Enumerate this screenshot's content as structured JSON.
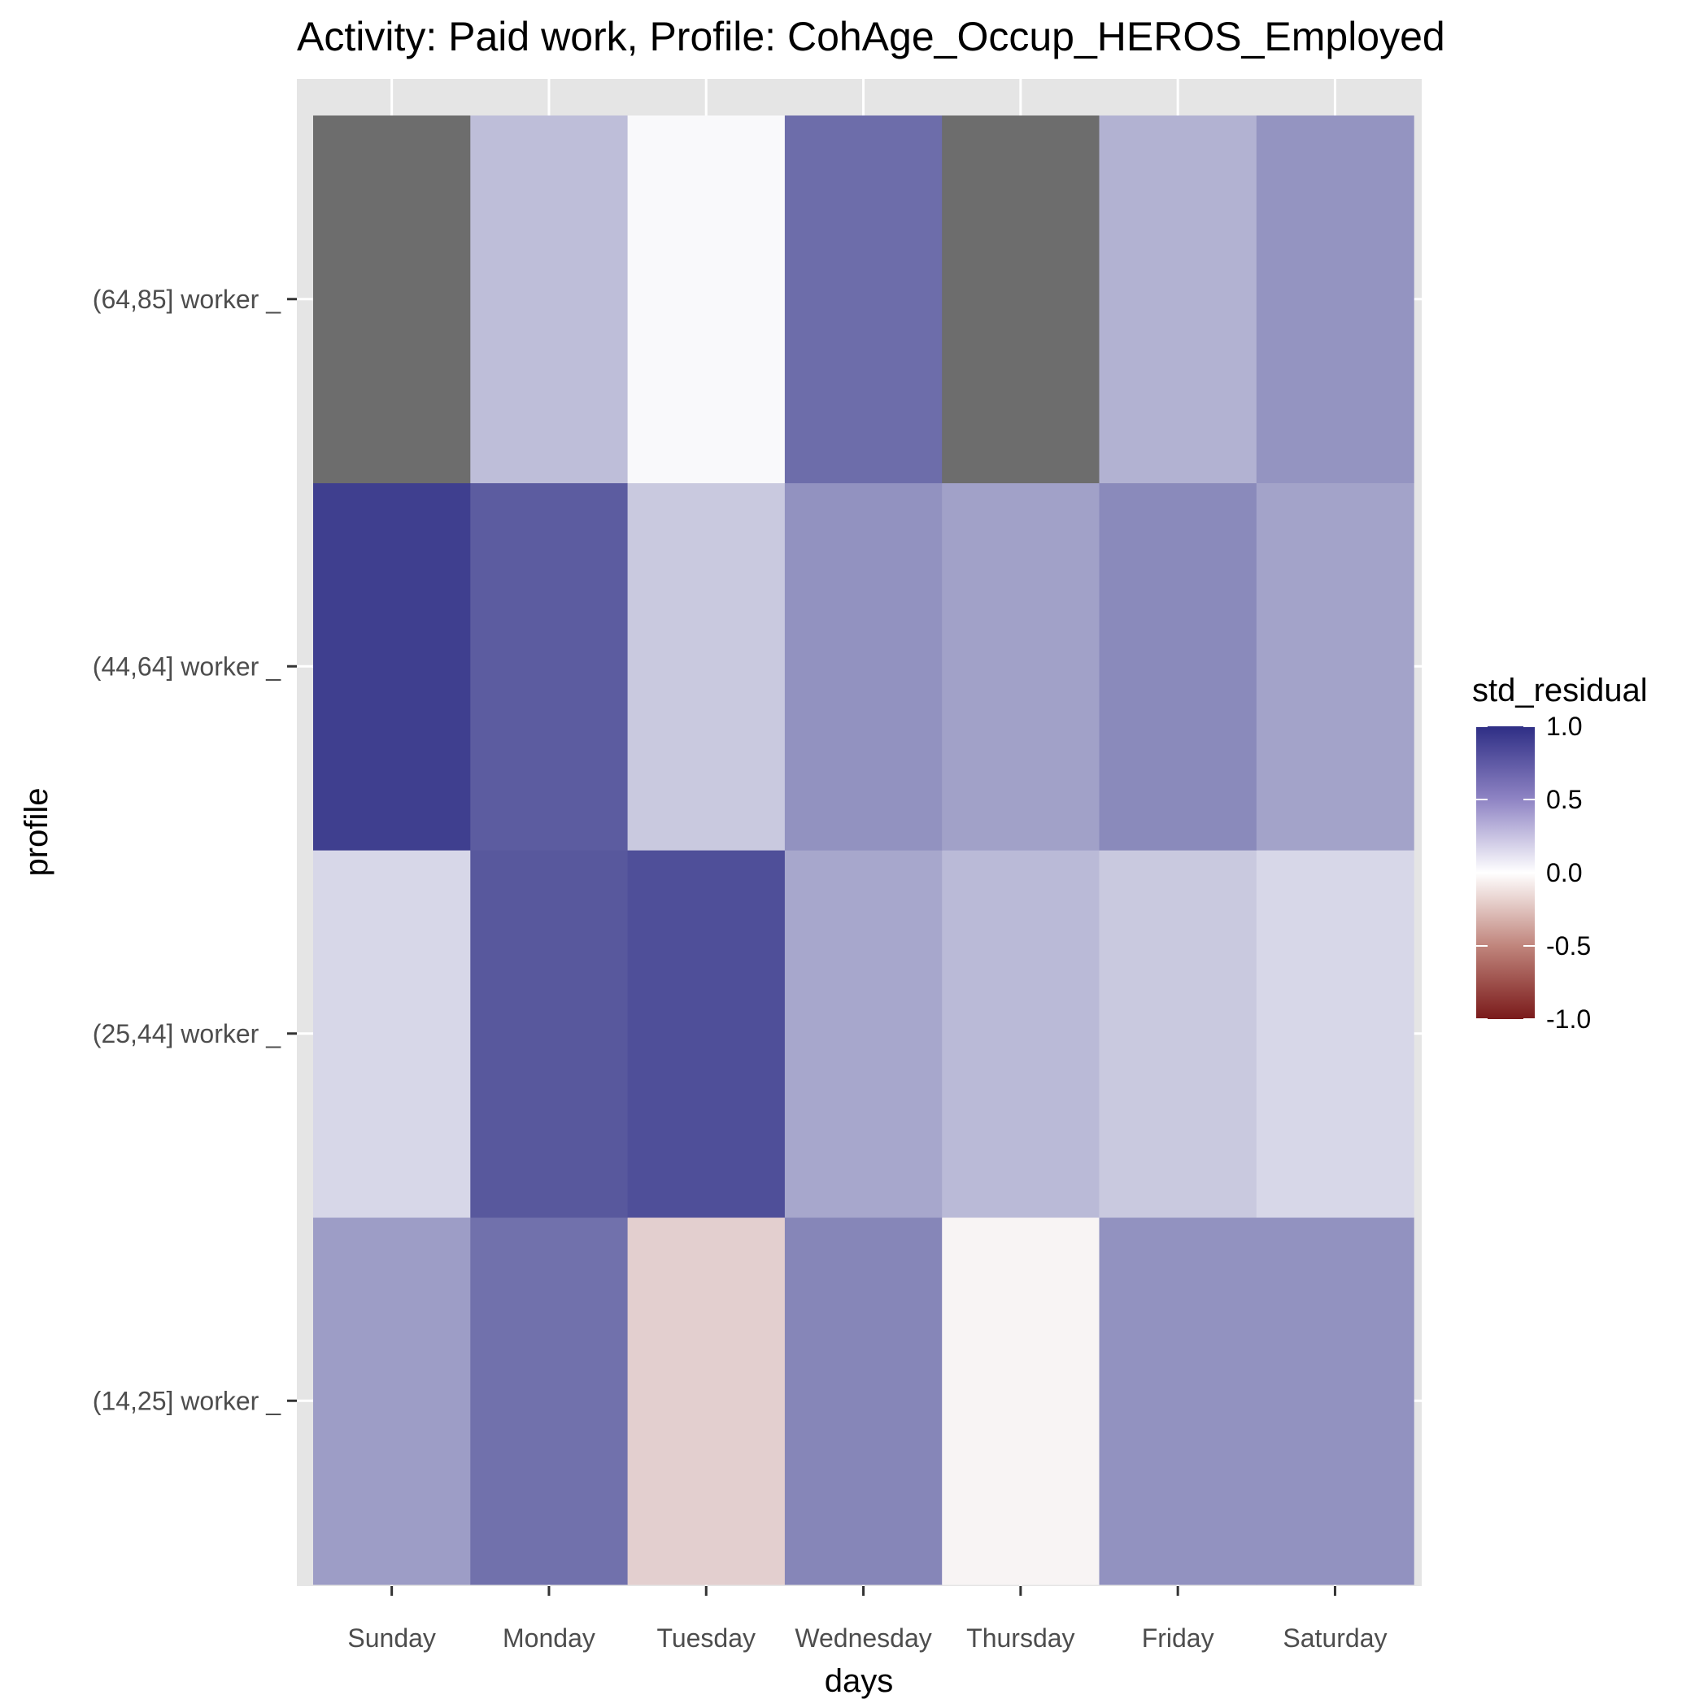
{
  "chart_data": {
    "type": "heatmap",
    "title": "Activity: Paid work, Profile: CohAge_Occup_HEROS_Employed",
    "xlabel": "days",
    "ylabel": "profile",
    "x_categories": [
      "Sunday",
      "Monday",
      "Tuesday",
      "Wednesday",
      "Thursday",
      "Friday",
      "Saturday"
    ],
    "y_categories": [
      "(14,25] worker _",
      "(25,44] worker _",
      "(44,64] worker _",
      "(64,85] worker _"
    ],
    "values": [
      [
        0.47,
        0.68,
        -0.21,
        0.58,
        -0.05,
        0.52,
        0.52
      ],
      [
        0.19,
        0.8,
        0.84,
        0.42,
        0.33,
        0.26,
        0.19
      ],
      [
        0.92,
        0.78,
        0.26,
        0.52,
        0.45,
        0.56,
        0.44
      ],
      [
        null,
        0.31,
        0.03,
        0.7,
        null,
        0.37,
        0.51
      ]
    ],
    "legend": {
      "title": "std_residual",
      "ticks": [
        1.0,
        0.5,
        0.0,
        -0.5,
        -1.0
      ],
      "tick_labels": [
        "1.0",
        "0.5",
        "0.0",
        "-0.5",
        "-1.0"
      ],
      "range": [
        -1.0,
        1.0
      ],
      "position": "right"
    },
    "colors": {
      "high": "#2e2e85",
      "mid": "#ffffff",
      "low": "#7a1a1a",
      "na": "#6d6d6d",
      "panel_background": "#e5e5e5",
      "grid": "#ffffff"
    },
    "grid": true
  }
}
